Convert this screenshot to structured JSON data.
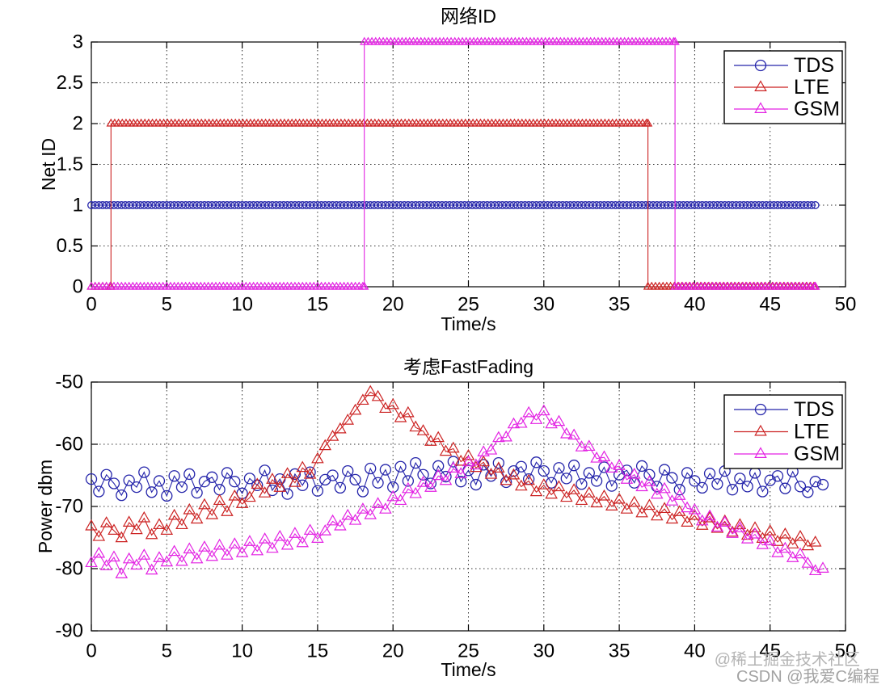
{
  "page": {
    "background": "#ffffff"
  },
  "watermark": {
    "line1": "@稀土掘金技术社区",
    "line2": "CSDN @我爱C编程",
    "color": "#ababab"
  },
  "colors": {
    "tds": "#2424aa",
    "lte": "#cc2222",
    "gsm": "#e322e3"
  },
  "chart_data": [
    {
      "id": "net-id",
      "type": "line",
      "title": "网络ID",
      "xlabel": "Time/s",
      "ylabel": "Net ID",
      "xlim": [
        0,
        50
      ],
      "ylim": [
        0,
        3
      ],
      "xticks": [
        0,
        5,
        10,
        15,
        20,
        25,
        30,
        35,
        40,
        45,
        50
      ],
      "yticks": [
        0,
        0.5,
        1,
        1.5,
        2,
        2.5,
        3
      ],
      "grid": true,
      "legend_position": "northeast",
      "legend": [
        "TDS",
        "LTE",
        "GSM"
      ],
      "marker_interval": 0.25,
      "series": [
        {
          "name": "TDS",
          "color": "#2424aa",
          "marker": "circle",
          "steps": [
            {
              "from": 0,
              "to": 48,
              "y": 1
            }
          ]
        },
        {
          "name": "LTE",
          "color": "#cc2222",
          "marker": "triangle",
          "steps": [
            {
              "from": 0,
              "to": 1.3,
              "y": 0
            },
            {
              "from": 1.3,
              "to": 36.9,
              "y": 2
            },
            {
              "from": 36.9,
              "to": 48,
              "y": 0
            }
          ]
        },
        {
          "name": "GSM",
          "color": "#e322e3",
          "marker": "triangle",
          "steps": [
            {
              "from": 0,
              "to": 18.1,
              "y": 0
            },
            {
              "from": 18.1,
              "to": 38.7,
              "y": 3
            },
            {
              "from": 38.7,
              "to": 48,
              "y": 0
            }
          ]
        }
      ]
    },
    {
      "id": "fastfading",
      "type": "line",
      "title": "考虑FastFading",
      "xlabel": "Time/s",
      "ylabel": "Power dbm",
      "xlim": [
        0,
        50
      ],
      "ylim": [
        -90,
        -50
      ],
      "xticks": [
        0,
        5,
        10,
        15,
        20,
        25,
        30,
        35,
        40,
        45,
        50
      ],
      "yticks": [
        -90,
        -80,
        -70,
        -60,
        -50
      ],
      "grid": true,
      "legend_position": "northeast",
      "legend": [
        "TDS",
        "LTE",
        "GSM"
      ],
      "x_start": 0,
      "x_step": 0.5,
      "series": [
        {
          "name": "TDS",
          "color": "#2424aa",
          "marker": "circle",
          "values": [
            -65.6,
            -67.6,
            -64.9,
            -66.3,
            -68.2,
            -65.8,
            -66.9,
            -64.5,
            -67.7,
            -65.9,
            -68.3,
            -65.1,
            -66.9,
            -64.8,
            -67.8,
            -66.0,
            -65.3,
            -67.3,
            -64.6,
            -66.0,
            -67.9,
            -65.5,
            -66.6,
            -64.2,
            -67.4,
            -65.6,
            -68.0,
            -64.8,
            -66.6,
            -64.5,
            -67.5,
            -65.7,
            -65.0,
            -67.0,
            -64.3,
            -65.7,
            -67.6,
            -63.9,
            -66.2,
            -64.1,
            -66.9,
            -63.6,
            -65.9,
            -63.0,
            -64.9,
            -66.3,
            -63.5,
            -65.2,
            -62.8,
            -66.0,
            -64.2,
            -66.5,
            -63.3,
            -65.1,
            -63.0,
            -66.1,
            -64.3,
            -63.6,
            -65.6,
            -62.9,
            -64.3,
            -66.2,
            -63.8,
            -65.5,
            -63.4,
            -66.4,
            -64.6,
            -65.9,
            -63.7,
            -66.7,
            -64.9,
            -64.2,
            -66.2,
            -63.5,
            -64.9,
            -66.8,
            -64.1,
            -65.4,
            -67.3,
            -64.6,
            -65.9,
            -67.0,
            -64.7,
            -66.4,
            -64.3,
            -67.3,
            -65.5,
            -66.8,
            -64.6,
            -67.6,
            -65.8,
            -65.1,
            -67.1,
            -64.4,
            -66.8,
            -67.7,
            -66.0,
            -66.5
          ]
        },
        {
          "name": "LTE",
          "color": "#cc2222",
          "marker": "triangle",
          "values": [
            -73.2,
            -74.9,
            -72.7,
            -73.9,
            -75.1,
            -72.6,
            -73.8,
            -71.9,
            -74.6,
            -73.0,
            -73.9,
            -71.5,
            -73.0,
            -70.6,
            -72.1,
            -69.8,
            -71.4,
            -69.1,
            -70.9,
            -68.4,
            -69.6,
            -68.6,
            -66.5,
            -67.9,
            -65.7,
            -67.0,
            -64.8,
            -66.2,
            -63.8,
            -64.9,
            -62.4,
            -60.3,
            -58.8,
            -57.6,
            -56.2,
            -54.6,
            -53.0,
            -51.6,
            -52.4,
            -54.3,
            -53.7,
            -55.8,
            -55.0,
            -57.3,
            -57.9,
            -59.6,
            -59.0,
            -61.2,
            -60.7,
            -62.8,
            -61.9,
            -63.8,
            -62.9,
            -64.9,
            -63.9,
            -65.9,
            -65.0,
            -66.8,
            -65.9,
            -67.7,
            -66.6,
            -68.1,
            -66.9,
            -68.6,
            -67.4,
            -69.1,
            -67.9,
            -69.5,
            -68.4,
            -70.0,
            -68.9,
            -70.5,
            -69.4,
            -71.1,
            -69.9,
            -71.6,
            -70.4,
            -72.1,
            -70.9,
            -72.6,
            -71.5,
            -73.1,
            -71.9,
            -73.6,
            -72.4,
            -74.2,
            -73.0,
            -74.7,
            -73.5,
            -75.2,
            -74.0,
            -75.7,
            -74.5,
            -76.1,
            -74.9,
            -76.4,
            -75.8
          ]
        },
        {
          "name": "GSM",
          "color": "#e322e3",
          "marker": "triangle",
          "values": [
            -79.1,
            -77.6,
            -79.6,
            -78.2,
            -80.9,
            -78.5,
            -79.5,
            -77.9,
            -80.3,
            -78.3,
            -79.0,
            -77.3,
            -78.9,
            -76.9,
            -78.5,
            -76.6,
            -78.1,
            -76.3,
            -77.9,
            -76.1,
            -77.5,
            -75.7,
            -77.2,
            -75.3,
            -76.8,
            -74.9,
            -76.3,
            -74.4,
            -75.9,
            -73.9,
            -75.2,
            -74.0,
            -72.4,
            -73.2,
            -71.5,
            -72.3,
            -70.5,
            -71.4,
            -69.6,
            -70.5,
            -68.5,
            -69.1,
            -67.2,
            -68.0,
            -66.2,
            -67.0,
            -65.1,
            -65.9,
            -63.9,
            -64.8,
            -62.9,
            -63.4,
            -61.3,
            -61.0,
            -59.0,
            -58.9,
            -56.8,
            -56.7,
            -55.0,
            -56.1,
            -54.7,
            -56.8,
            -56.4,
            -58.4,
            -58.6,
            -60.5,
            -60.4,
            -62.3,
            -62.1,
            -63.9,
            -63.5,
            -65.7,
            -64.9,
            -66.9,
            -66.1,
            -68.1,
            -67.2,
            -69.2,
            -68.3,
            -70.3,
            -70.6,
            -72.4,
            -71.6,
            -73.4,
            -72.6,
            -74.4,
            -73.5,
            -75.3,
            -74.5,
            -76.2,
            -75.6,
            -77.5,
            -76.8,
            -78.3,
            -77.7,
            -79.2,
            -80.4,
            -80.0
          ]
        }
      ]
    }
  ]
}
